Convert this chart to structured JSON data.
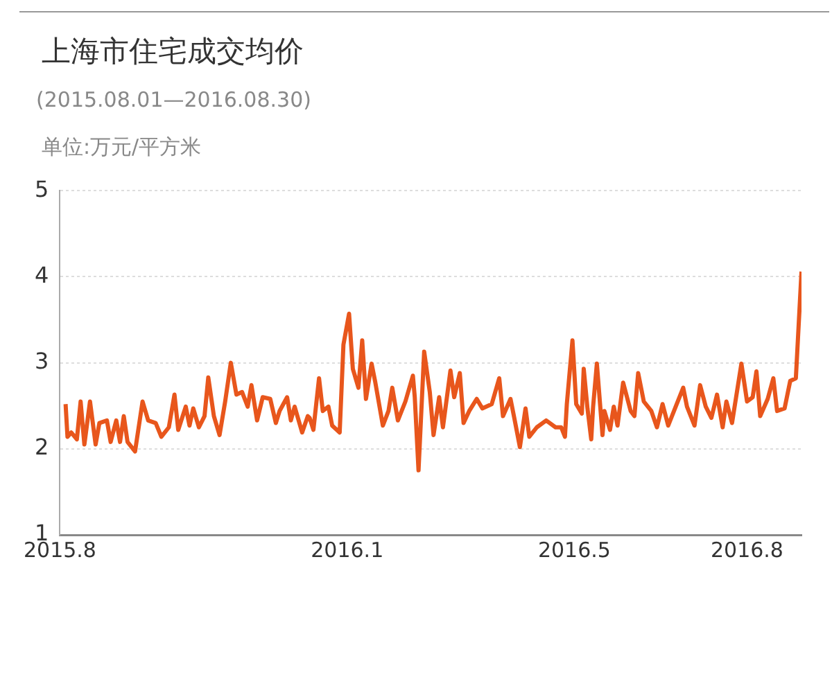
{
  "chart_data": {
    "type": "line",
    "title": "上海市住宅成交均价",
    "subtitle": "(2015.08.01—2016.08.30)",
    "ylabel": "单位:万元/平方米",
    "x": [
      "2015-08-04",
      "2015-08-05",
      "2015-08-07",
      "2015-08-10",
      "2015-08-12",
      "2015-08-14",
      "2015-08-17",
      "2015-08-20",
      "2015-08-22",
      "2015-08-26",
      "2015-08-28",
      "2015-08-31",
      "2015-09-02",
      "2015-09-04",
      "2015-09-06",
      "2015-09-10",
      "2015-09-14",
      "2015-09-17",
      "2015-09-21",
      "2015-09-24",
      "2015-09-28",
      "2015-10-01",
      "2015-10-03",
      "2015-10-07",
      "2015-10-09",
      "2015-10-11",
      "2015-10-14",
      "2015-10-17",
      "2015-10-19",
      "2015-10-22",
      "2015-10-25",
      "2015-10-28",
      "2015-10-31",
      "2015-11-03",
      "2015-11-06",
      "2015-11-09",
      "2015-11-11",
      "2015-11-14",
      "2015-11-17",
      "2015-11-21",
      "2015-11-24",
      "2015-11-26",
      "2015-11-30",
      "2015-12-02",
      "2015-12-04",
      "2015-12-08",
      "2015-12-11",
      "2015-12-12",
      "2015-12-14",
      "2015-12-17",
      "2015-12-19",
      "2015-12-22",
      "2015-12-24",
      "2015-12-28",
      "2015-12-30",
      "2016-01-02",
      "2016-01-04",
      "2016-01-07",
      "2016-01-09",
      "2016-01-11",
      "2016-01-14",
      "2016-01-16",
      "2016-01-20",
      "2016-01-23",
      "2016-01-25",
      "2016-01-28",
      "2016-02-01",
      "2016-02-05",
      "2016-02-06",
      "2016-02-08",
      "2016-02-11",
      "2016-02-14",
      "2016-02-16",
      "2016-02-19",
      "2016-02-21",
      "2016-02-25",
      "2016-02-27",
      "2016-03-01",
      "2016-03-03",
      "2016-03-06",
      "2016-03-10",
      "2016-03-13",
      "2016-03-18",
      "2016-03-22",
      "2016-03-24",
      "2016-03-28",
      "2016-03-30",
      "2016-04-02",
      "2016-04-05",
      "2016-04-07",
      "2016-04-11",
      "2016-04-16",
      "2016-04-21",
      "2016-04-24",
      "2016-04-26",
      "2016-04-27",
      "2016-04-30",
      "2016-05-02",
      "2016-05-05",
      "2016-05-06",
      "2016-05-08",
      "2016-05-10",
      "2016-05-11",
      "2016-05-13",
      "2016-05-16",
      "2016-05-17",
      "2016-05-20",
      "2016-05-22",
      "2016-05-24",
      "2016-05-27",
      "2016-05-31",
      "2016-06-02",
      "2016-06-04",
      "2016-06-07",
      "2016-06-11",
      "2016-06-14",
      "2016-06-17",
      "2016-06-20",
      "2016-06-24",
      "2016-06-28",
      "2016-06-30",
      "2016-07-04",
      "2016-07-07",
      "2016-07-10",
      "2016-07-13",
      "2016-07-16",
      "2016-07-19",
      "2016-07-21",
      "2016-07-24",
      "2016-07-29",
      "2016-08-01",
      "2016-08-04",
      "2016-08-06",
      "2016-08-08",
      "2016-08-12",
      "2016-08-15",
      "2016-08-17",
      "2016-08-21",
      "2016-08-24",
      "2016-08-27",
      "2016-08-30"
    ],
    "series": [
      {
        "color": "#e8561c",
        "values": [
          2.52,
          2.14,
          2.19,
          2.11,
          2.55,
          2.05,
          2.55,
          2.05,
          2.3,
          2.33,
          2.08,
          2.33,
          2.08,
          2.38,
          2.08,
          1.97,
          2.55,
          2.33,
          2.3,
          2.14,
          2.25,
          2.63,
          2.22,
          2.49,
          2.27,
          2.47,
          2.25,
          2.38,
          2.83,
          2.38,
          2.16,
          2.55,
          3.0,
          2.63,
          2.66,
          2.49,
          2.74,
          2.33,
          2.6,
          2.58,
          2.3,
          2.44,
          2.6,
          2.33,
          2.49,
          2.19,
          2.38,
          2.36,
          2.22,
          2.82,
          2.44,
          2.49,
          2.27,
          2.19,
          3.21,
          3.57,
          2.93,
          2.71,
          3.26,
          2.58,
          2.99,
          2.77,
          2.27,
          2.44,
          2.71,
          2.33,
          2.55,
          2.85,
          2.6,
          1.75,
          3.13,
          2.66,
          2.16,
          2.6,
          2.25,
          2.91,
          2.6,
          2.88,
          2.3,
          2.44,
          2.58,
          2.47,
          2.52,
          2.82,
          2.38,
          2.58,
          2.36,
          2.02,
          2.47,
          2.14,
          2.25,
          2.33,
          2.25,
          2.25,
          2.14,
          2.52,
          3.26,
          2.52,
          2.41,
          2.93,
          2.47,
          2.11,
          2.49,
          2.99,
          2.16,
          2.44,
          2.22,
          2.49,
          2.27,
          2.77,
          2.44,
          2.38,
          2.88,
          2.55,
          2.44,
          2.25,
          2.52,
          2.27,
          2.49,
          2.71,
          2.49,
          2.27,
          2.74,
          2.49,
          2.36,
          2.63,
          2.25,
          2.55,
          2.3,
          2.99,
          2.55,
          2.6,
          2.9,
          2.38,
          2.58,
          2.82,
          2.44,
          2.47,
          2.79,
          2.82,
          4.06
        ]
      }
    ],
    "xlim": [
      "2015-08-01",
      "2016-08-30"
    ],
    "xticks": [
      {
        "value": "2015-08-01",
        "label": "2015.8"
      },
      {
        "value": "2016-01-01",
        "label": "2016.1"
      },
      {
        "value": "2016-05-01",
        "label": "2016.5"
      },
      {
        "value": "2016-08-01",
        "label": "2016.8"
      }
    ],
    "ylim": [
      1,
      5
    ],
    "yticks": [
      1,
      2,
      3,
      4,
      5
    ],
    "grid": "y",
    "legend": false,
    "marker": "none",
    "line_style": "solid"
  }
}
